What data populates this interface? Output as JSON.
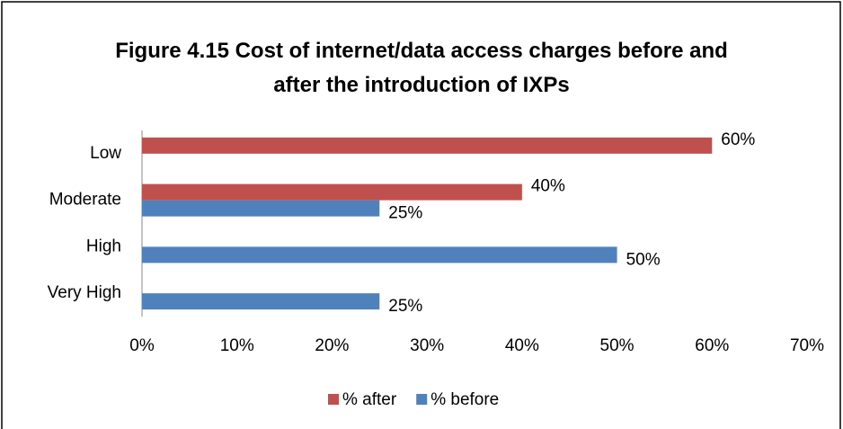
{
  "chart_data": {
    "type": "bar",
    "orientation": "horizontal",
    "title": "Figure 4.15 Cost of internet/data access charges before and after the introduction of IXPs",
    "categories": [
      "Low",
      "Moderate",
      "High",
      "Very High"
    ],
    "series": [
      {
        "name": "% after",
        "color": "#c0504d",
        "values": [
          60,
          40,
          null,
          null
        ],
        "value_labels": [
          "60%",
          "40%",
          null,
          null
        ]
      },
      {
        "name": "% before",
        "color": "#4f81bd",
        "values": [
          null,
          25,
          50,
          25
        ],
        "value_labels": [
          null,
          "25%",
          "50%",
          "25%"
        ]
      }
    ],
    "xlim": [
      0,
      70
    ],
    "xticks": [
      {
        "value": 0,
        "label": "0%"
      },
      {
        "value": 10,
        "label": "10%"
      },
      {
        "value": 20,
        "label": "20%"
      },
      {
        "value": 30,
        "label": "30%"
      },
      {
        "value": 40,
        "label": "40%"
      },
      {
        "value": 50,
        "label": "50%"
      },
      {
        "value": 60,
        "label": "60%"
      },
      {
        "value": 70,
        "label": "70%"
      }
    ],
    "legend": "bottom"
  }
}
